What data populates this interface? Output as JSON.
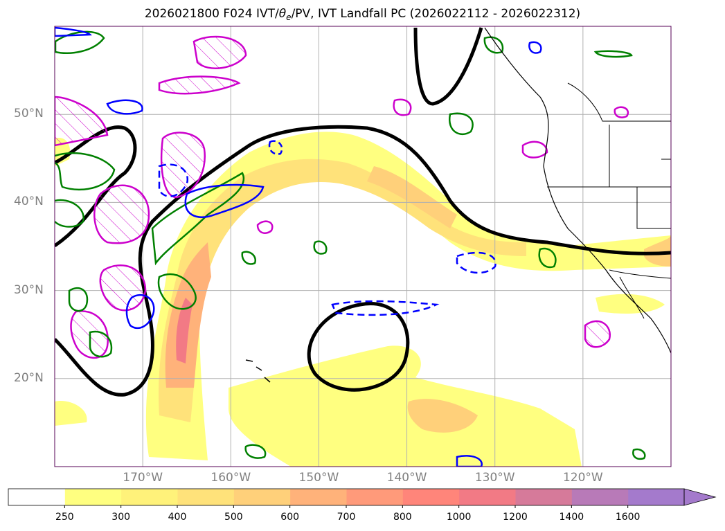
{
  "title": {
    "prefix": "2026021800 F024 IVT/",
    "theta": "θ",
    "theta_sub": "e",
    "suffix": "/PV, IVT Landfall PC (2026022112 - 2026022312)"
  },
  "map": {
    "lon_range": [
      -180,
      -110
    ],
    "lat_range": [
      10,
      60
    ],
    "lat_labels": [
      "50°N",
      "40°N",
      "30°N",
      "20°N"
    ],
    "lon_labels": [
      "170°W",
      "160°W",
      "150°W",
      "140°W",
      "130°W",
      "120°W"
    ],
    "gridlines": true
  },
  "colorbar": {
    "tick_labels": [
      "250",
      "300",
      "400",
      "500",
      "600",
      "700",
      "800",
      "1000",
      "1200",
      "1400",
      "1600"
    ],
    "colors": [
      "#ffffff",
      "#ffff80",
      "#fff27a",
      "#ffe27a",
      "#ffd07a",
      "#ffb27a",
      "#ff9a7a",
      "#ff857a",
      "#f27a85",
      "#d67a9a",
      "#b87ab8",
      "#a47acc"
    ],
    "extend": "max"
  },
  "legend_colors": {
    "pv_contour": "#cc00cc",
    "theta_e_contour": "#008000",
    "pc_contour": "#000000",
    "negative_contour": "#0000ff",
    "coastline": "#000000"
  }
}
